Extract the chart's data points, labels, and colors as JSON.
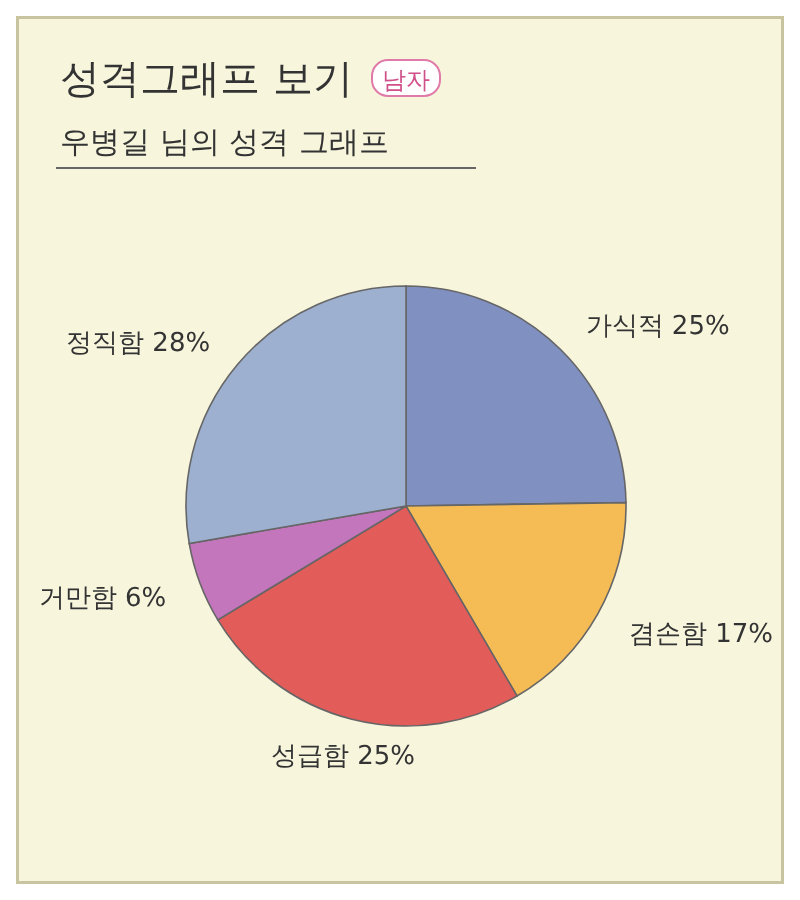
{
  "chart_data": {
    "type": "pie",
    "title": "성격그래프 보기",
    "subtitle": "우병길 님의 성격 그래프",
    "annotations": [
      "남자"
    ],
    "categories": [
      "가식적",
      "겸손함",
      "성급함",
      "거만함",
      "정직함"
    ],
    "values": [
      25,
      17,
      25,
      6,
      28
    ],
    "value_labels": [
      "25%",
      "17%",
      "25%",
      "6%",
      "28%"
    ],
    "colors": [
      "#8090c0",
      "#f5bc55",
      "#e25c5a",
      "#c476bd",
      "#9db0cf"
    ]
  }
}
